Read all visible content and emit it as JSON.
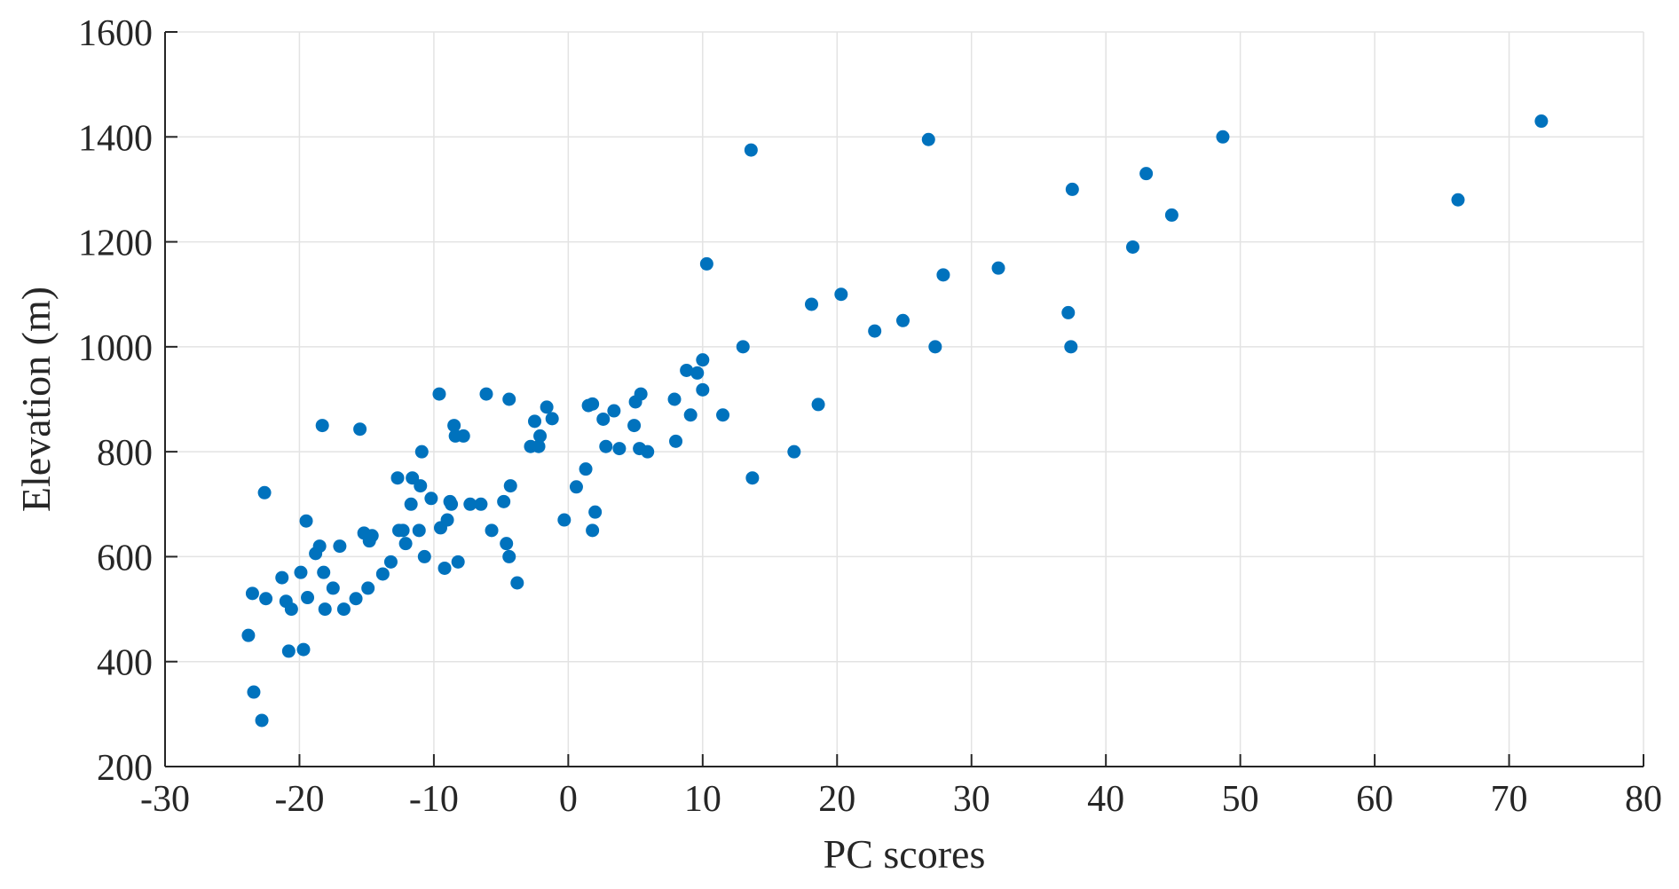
{
  "chart_data": {
    "type": "scatter",
    "xlabel": "PC scores",
    "ylabel": "Elevation (m)",
    "xlim": [
      -30,
      80
    ],
    "ylim": [
      200,
      1600
    ],
    "xticks": [
      -30,
      -20,
      -10,
      0,
      10,
      20,
      30,
      40,
      50,
      60,
      70,
      80
    ],
    "yticks": [
      200,
      400,
      600,
      800,
      1000,
      1200,
      1400,
      1600
    ],
    "grid": true,
    "marker_color": "#0072BD",
    "points": [
      [
        -23.8,
        450
      ],
      [
        -23.5,
        530
      ],
      [
        -23.4,
        342
      ],
      [
        -22.8,
        288
      ],
      [
        -22.6,
        722
      ],
      [
        -22.5,
        520
      ],
      [
        -21.3,
        560
      ],
      [
        -21.0,
        515
      ],
      [
        -20.8,
        420
      ],
      [
        -20.6,
        500
      ],
      [
        -19.9,
        570
      ],
      [
        -19.7,
        423
      ],
      [
        -19.5,
        668
      ],
      [
        -19.4,
        522
      ],
      [
        -18.8,
        606
      ],
      [
        -18.5,
        620
      ],
      [
        -18.3,
        850
      ],
      [
        -18.2,
        570
      ],
      [
        -18.1,
        500
      ],
      [
        -17.5,
        540
      ],
      [
        -17.0,
        620
      ],
      [
        -16.7,
        500
      ],
      [
        -15.8,
        520
      ],
      [
        -15.5,
        843
      ],
      [
        -15.2,
        645
      ],
      [
        -14.9,
        540
      ],
      [
        -14.8,
        630
      ],
      [
        -14.6,
        640
      ],
      [
        -13.8,
        567
      ],
      [
        -13.2,
        590
      ],
      [
        -12.7,
        750
      ],
      [
        -12.6,
        650
      ],
      [
        -12.3,
        650
      ],
      [
        -12.1,
        625
      ],
      [
        -11.7,
        700
      ],
      [
        -11.6,
        750
      ],
      [
        -11.1,
        650
      ],
      [
        -11.0,
        735
      ],
      [
        -10.9,
        800
      ],
      [
        -10.7,
        600
      ],
      [
        -10.2,
        711
      ],
      [
        -9.6,
        910
      ],
      [
        -9.5,
        655
      ],
      [
        -9.2,
        578
      ],
      [
        -9.0,
        670
      ],
      [
        -8.8,
        705
      ],
      [
        -8.7,
        700
      ],
      [
        -8.5,
        850
      ],
      [
        -8.4,
        830
      ],
      [
        -8.2,
        590
      ],
      [
        -7.8,
        830
      ],
      [
        -7.3,
        700
      ],
      [
        -6.5,
        700
      ],
      [
        -6.1,
        910
      ],
      [
        -5.7,
        650
      ],
      [
        -4.8,
        705
      ],
      [
        -4.6,
        625
      ],
      [
        -4.4,
        900
      ],
      [
        -4.4,
        600
      ],
      [
        -4.3,
        735
      ],
      [
        -3.8,
        550
      ],
      [
        -2.8,
        810
      ],
      [
        -2.5,
        858
      ],
      [
        -2.2,
        810
      ],
      [
        -2.1,
        830
      ],
      [
        -1.6,
        885
      ],
      [
        -1.2,
        863
      ],
      [
        -0.3,
        670
      ],
      [
        0.6,
        733
      ],
      [
        1.3,
        767
      ],
      [
        1.5,
        888
      ],
      [
        1.8,
        891
      ],
      [
        1.8,
        650
      ],
      [
        2.0,
        685
      ],
      [
        2.6,
        862
      ],
      [
        2.8,
        810
      ],
      [
        3.4,
        878
      ],
      [
        3.8,
        806
      ],
      [
        4.9,
        850
      ],
      [
        5.0,
        895
      ],
      [
        5.3,
        806
      ],
      [
        5.4,
        910
      ],
      [
        5.9,
        800
      ],
      [
        7.9,
        900
      ],
      [
        8.0,
        820
      ],
      [
        8.8,
        955
      ],
      [
        9.1,
        870
      ],
      [
        9.6,
        950
      ],
      [
        10.0,
        975
      ],
      [
        10.0,
        918
      ],
      [
        10.3,
        1158
      ],
      [
        11.5,
        870
      ],
      [
        13.0,
        1000
      ],
      [
        13.6,
        1375
      ],
      [
        13.7,
        750
      ],
      [
        16.8,
        800
      ],
      [
        18.1,
        1081
      ],
      [
        18.6,
        890
      ],
      [
        20.3,
        1100
      ],
      [
        22.8,
        1030
      ],
      [
        24.9,
        1050
      ],
      [
        26.8,
        1395
      ],
      [
        27.3,
        1000
      ],
      [
        27.9,
        1137
      ],
      [
        32.0,
        1150
      ],
      [
        37.2,
        1065
      ],
      [
        37.4,
        1000
      ],
      [
        37.5,
        1300
      ],
      [
        42.0,
        1190
      ],
      [
        43.0,
        1330
      ],
      [
        44.9,
        1251
      ],
      [
        48.7,
        1400
      ],
      [
        66.2,
        1280
      ],
      [
        72.4,
        1430
      ]
    ]
  }
}
